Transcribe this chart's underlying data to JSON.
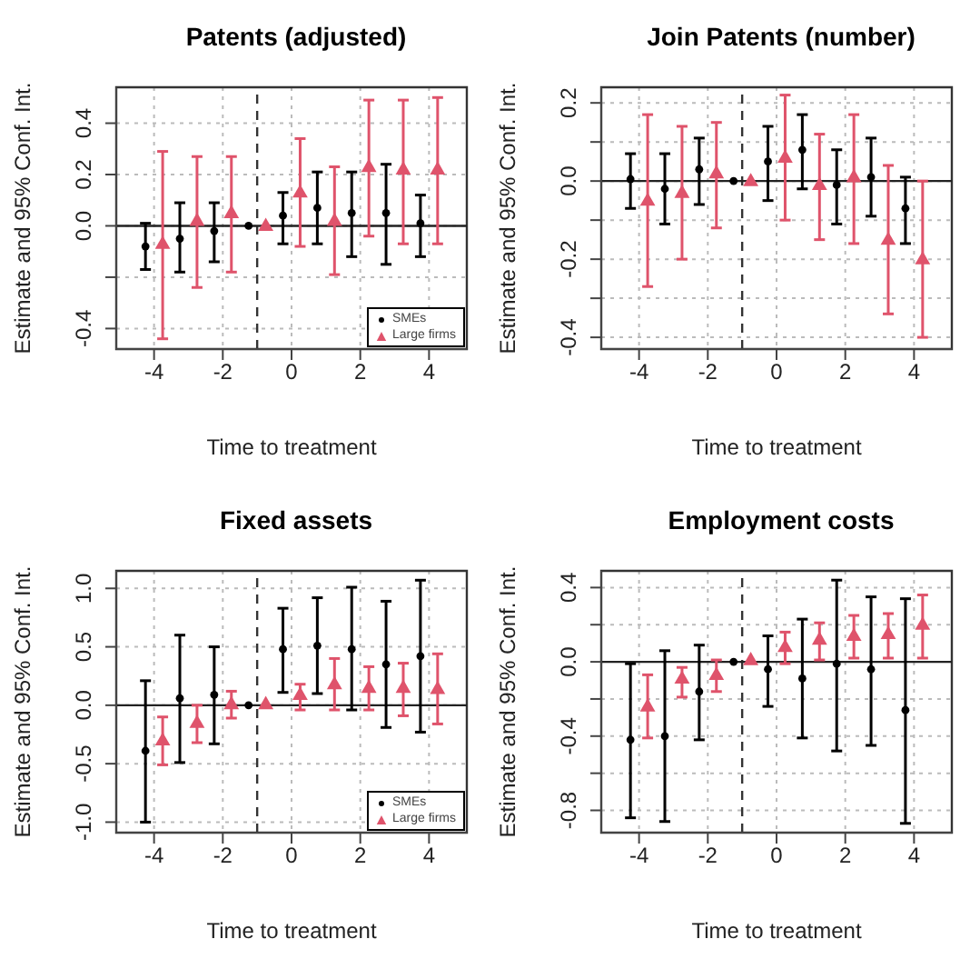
{
  "chart_data": [
    {
      "type": "scatter",
      "title": "Patents (adjusted)",
      "xlabel": "Time to treatment",
      "ylabel": "Estimate and 95% Conf. Int.",
      "xlim": [
        -5.1,
        5.1
      ],
      "xticks": [
        -4,
        -2,
        0,
        2,
        4
      ],
      "ylim": [
        -0.48,
        0.54
      ],
      "yticks": [
        {
          "value": -0.4,
          "label": "-0.4"
        },
        {
          "value": -0.2,
          "label": null
        },
        {
          "value": 0,
          "label": "0.0"
        },
        0.2,
        0.4
      ],
      "grid": true,
      "legend": "bottom right",
      "ref_lines": [
        {
          "axis": "x",
          "value": -1,
          "line_style": "dashed"
        },
        {
          "axis": "y",
          "value": 0,
          "line_style": "solid"
        }
      ],
      "series": [
        {
          "name": "SMEs",
          "color": "#000000",
          "marker": "circle",
          "x": [
            -4.25,
            -3.25,
            -2.25,
            -1.25,
            -0.25,
            0.75,
            1.75,
            2.75,
            3.75
          ],
          "values": [
            -0.08,
            -0.05,
            -0.02,
            0.0,
            0.04,
            0.07,
            0.05,
            0.05,
            0.01
          ],
          "errors": [
            [
              -0.17,
              0.01
            ],
            [
              -0.18,
              0.09
            ],
            [
              -0.14,
              0.09
            ],
            null,
            [
              -0.07,
              0.13
            ],
            [
              -0.07,
              0.21
            ],
            [
              -0.12,
              0.21
            ],
            [
              -0.15,
              0.24
            ],
            [
              -0.12,
              0.12
            ]
          ]
        },
        {
          "name": "Large firms",
          "color": "#df536b",
          "marker": "triangle",
          "x": [
            -3.75,
            -2.75,
            -1.75,
            -0.75,
            0.25,
            1.25,
            2.25,
            3.25,
            4.25
          ],
          "values": [
            -0.07,
            0.02,
            0.05,
            0.0,
            0.13,
            0.02,
            0.23,
            0.22,
            0.22
          ],
          "errors": [
            [
              -0.44,
              0.29
            ],
            [
              -0.24,
              0.27
            ],
            [
              -0.18,
              0.27
            ],
            null,
            [
              -0.08,
              0.34
            ],
            [
              -0.19,
              0.23
            ],
            [
              -0.04,
              0.49
            ],
            [
              -0.07,
              0.49
            ],
            [
              -0.07,
              0.5
            ]
          ]
        }
      ]
    },
    {
      "type": "scatter",
      "title": "Join Patents (number)",
      "xlabel": "Time to treatment",
      "ylabel": "Estimate and 95% Conf. Int.",
      "xlim": [
        -5.1,
        5.1
      ],
      "xticks": [
        -4,
        -2,
        0,
        2,
        4
      ],
      "ylim": [
        -0.43,
        0.24
      ],
      "yticks": [
        {
          "value": -0.4,
          "label": "-0.4"
        },
        {
          "value": -0.3,
          "label": null
        },
        {
          "value": -0.2,
          "label": "-0.2"
        },
        {
          "value": -0.1,
          "label": null
        },
        {
          "value": 0,
          "label": "0.0"
        },
        {
          "value": 0.1,
          "label": null
        },
        0.2
      ],
      "grid": true,
      "ref_lines": [
        {
          "axis": "x",
          "value": -1,
          "line_style": "dashed"
        },
        {
          "axis": "y",
          "value": 0,
          "line_style": "solid"
        }
      ],
      "series": [
        {
          "color": "#000000",
          "marker": "circle",
          "x": [
            -4.25,
            -3.25,
            -2.25,
            -1.25,
            -0.25,
            0.75,
            1.75,
            2.75,
            3.75
          ],
          "values": [
            0.005,
            -0.02,
            0.03,
            0.0,
            0.05,
            0.08,
            -0.01,
            0.01,
            -0.07
          ],
          "errors": [
            [
              -0.07,
              0.07
            ],
            [
              -0.11,
              0.07
            ],
            [
              -0.06,
              0.11
            ],
            null,
            [
              -0.05,
              0.14
            ],
            [
              -0.02,
              0.17
            ],
            [
              -0.11,
              0.08
            ],
            [
              -0.09,
              0.11
            ],
            [
              -0.16,
              0.01
            ]
          ]
        },
        {
          "color": "#df536b",
          "marker": "triangle",
          "x": [
            -3.75,
            -2.75,
            -1.75,
            -0.75,
            0.25,
            1.25,
            2.25,
            3.25,
            4.25
          ],
          "values": [
            -0.05,
            -0.03,
            0.02,
            0.0,
            0.06,
            -0.01,
            0.01,
            -0.15,
            -0.2
          ],
          "errors": [
            [
              -0.27,
              0.17
            ],
            [
              -0.2,
              0.14
            ],
            [
              -0.12,
              0.15
            ],
            null,
            [
              -0.1,
              0.22
            ],
            [
              -0.15,
              0.12
            ],
            [
              -0.16,
              0.17
            ],
            [
              -0.34,
              0.04
            ],
            [
              -0.4,
              0.0
            ]
          ]
        }
      ]
    },
    {
      "type": "scatter",
      "title": "Fixed assets",
      "xlabel": "Time to treatment",
      "ylabel": "Estimate and 95% Conf. Int.",
      "xlim": [
        -5.1,
        5.1
      ],
      "xticks": [
        -4,
        -2,
        0,
        2,
        4
      ],
      "ylim": [
        -1.09,
        1.15
      ],
      "yticks": [
        {
          "value": -1,
          "label": "-1.0"
        },
        -0.5,
        {
          "value": 0,
          "label": "0.0"
        },
        0.5,
        {
          "value": 1,
          "label": "1.0"
        }
      ],
      "grid": true,
      "legend": "bottom right",
      "ref_lines": [
        {
          "axis": "x",
          "value": -1,
          "line_style": "dashed"
        },
        {
          "axis": "y",
          "value": 0,
          "line_style": "solid"
        }
      ],
      "series": [
        {
          "name": "SMEs",
          "color": "#000000",
          "marker": "circle",
          "x": [
            -4.25,
            -3.25,
            -2.25,
            -1.25,
            -0.25,
            0.75,
            1.75,
            2.75,
            3.75
          ],
          "values": [
            -0.39,
            0.06,
            0.09,
            0.0,
            0.48,
            0.51,
            0.48,
            0.35,
            0.42
          ],
          "errors": [
            [
              -1.0,
              0.21
            ],
            [
              -0.49,
              0.6
            ],
            [
              -0.33,
              0.5
            ],
            null,
            [
              0.11,
              0.83
            ],
            [
              0.1,
              0.92
            ],
            [
              -0.04,
              1.01
            ],
            [
              -0.19,
              0.89
            ],
            [
              -0.23,
              1.07
            ]
          ]
        },
        {
          "name": "Large firms",
          "color": "#df536b",
          "marker": "triangle",
          "x": [
            -3.75,
            -2.75,
            -1.75,
            -0.75,
            0.25,
            1.25,
            2.25,
            3.25,
            4.25
          ],
          "values": [
            -0.3,
            -0.15,
            0.01,
            0.01,
            0.09,
            0.18,
            0.15,
            0.15,
            0.14
          ],
          "errors": [
            [
              -0.51,
              -0.1
            ],
            [
              -0.32,
              0.0
            ],
            [
              -0.11,
              0.12
            ],
            null,
            [
              -0.04,
              0.18
            ],
            [
              -0.04,
              0.4
            ],
            [
              -0.04,
              0.33
            ],
            [
              -0.09,
              0.36
            ],
            [
              -0.16,
              0.44
            ]
          ]
        }
      ]
    },
    {
      "type": "scatter",
      "title": "Employment costs",
      "xlabel": "Time to treatment",
      "ylabel": "Estimate and 95% Conf. Int.",
      "xlim": [
        -5.1,
        5.1
      ],
      "xticks": [
        -4,
        -2,
        0,
        2,
        4
      ],
      "ylim": [
        -0.92,
        0.49
      ],
      "yticks": [
        {
          "value": -0.8,
          "label": "-0.8"
        },
        {
          "value": -0.6,
          "label": null
        },
        {
          "value": -0.4,
          "label": "-0.4"
        },
        {
          "value": -0.2,
          "label": null
        },
        {
          "value": 0,
          "label": "0.0"
        },
        {
          "value": 0.2,
          "label": null
        },
        0.4
      ],
      "grid": true,
      "ref_lines": [
        {
          "axis": "x",
          "value": -1,
          "line_style": "dashed"
        },
        {
          "axis": "y",
          "value": 0,
          "line_style": "solid"
        }
      ],
      "series": [
        {
          "color": "#000000",
          "marker": "circle",
          "x": [
            -4.25,
            -3.25,
            -2.25,
            -1.25,
            -0.25,
            0.75,
            1.75,
            2.75,
            3.75
          ],
          "values": [
            -0.42,
            -0.4,
            -0.16,
            0.0,
            -0.04,
            -0.09,
            -0.01,
            -0.04,
            -0.26
          ],
          "errors": [
            [
              -0.84,
              -0.01
            ],
            [
              -0.86,
              0.06
            ],
            [
              -0.42,
              0.09
            ],
            null,
            [
              -0.24,
              0.14
            ],
            [
              -0.41,
              0.23
            ],
            [
              -0.48,
              0.44
            ],
            [
              -0.45,
              0.35
            ],
            [
              -0.87,
              0.34
            ]
          ]
        },
        {
          "color": "#df536b",
          "marker": "triangle",
          "x": [
            -3.75,
            -2.75,
            -1.75,
            -0.75,
            0.25,
            1.25,
            2.25,
            3.25,
            4.25
          ],
          "values": [
            -0.24,
            -0.09,
            -0.07,
            0.01,
            0.08,
            0.12,
            0.14,
            0.15,
            0.2
          ],
          "errors": [
            [
              -0.41,
              -0.07
            ],
            [
              -0.19,
              -0.03
            ],
            [
              -0.16,
              0.01
            ],
            null,
            [
              -0.01,
              0.16
            ],
            [
              0.01,
              0.21
            ],
            [
              0.02,
              0.25
            ],
            [
              0.02,
              0.26
            ],
            [
              0.02,
              0.36
            ]
          ]
        }
      ]
    }
  ]
}
